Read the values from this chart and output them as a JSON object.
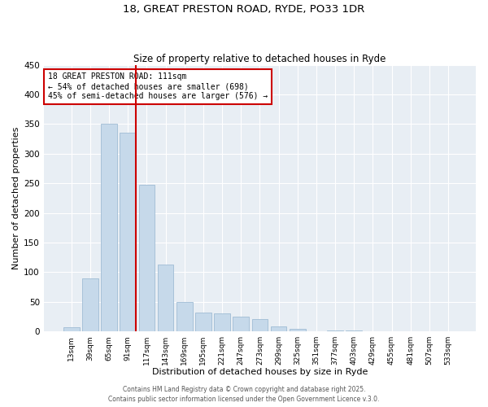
{
  "title1": "18, GREAT PRESTON ROAD, RYDE, PO33 1DR",
  "title2": "Size of property relative to detached houses in Ryde",
  "xlabel": "Distribution of detached houses by size in Ryde",
  "ylabel": "Number of detached properties",
  "bar_labels": [
    "13sqm",
    "39sqm",
    "65sqm",
    "91sqm",
    "117sqm",
    "143sqm",
    "169sqm",
    "195sqm",
    "221sqm",
    "247sqm",
    "273sqm",
    "299sqm",
    "325sqm",
    "351sqm",
    "377sqm",
    "403sqm",
    "429sqm",
    "455sqm",
    "481sqm",
    "507sqm",
    "533sqm"
  ],
  "bar_values": [
    7,
    89,
    350,
    335,
    247,
    113,
    50,
    32,
    30,
    25,
    21,
    9,
    4,
    0,
    1,
    1,
    0,
    0,
    0,
    0,
    0
  ],
  "bar_color": "#c6d9ea",
  "bar_edge_color": "#a0bcd4",
  "vline_color": "#cc0000",
  "annotation_title": "18 GREAT PRESTON ROAD: 111sqm",
  "annotation_line1": "← 54% of detached houses are smaller (698)",
  "annotation_line2": "45% of semi-detached houses are larger (576) →",
  "annotation_box_color": "#cc0000",
  "footer1": "Contains HM Land Registry data © Crown copyright and database right 2025.",
  "footer2": "Contains public sector information licensed under the Open Government Licence v.3.0.",
  "ylim": [
    0,
    450
  ],
  "yticks": [
    0,
    50,
    100,
    150,
    200,
    250,
    300,
    350,
    400,
    450
  ],
  "background_color": "#e8eef4"
}
